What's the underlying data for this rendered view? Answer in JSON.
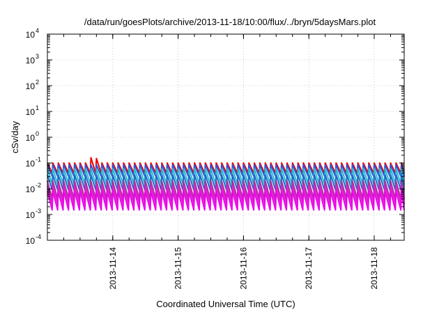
{
  "chart_data": {
    "type": "line",
    "title": "/data/run/goesPlots/archive/2013-11-18/10:00/flux/../bryn/5daysMars.plot",
    "xlabel": "Coordinated Universal Time (UTC)",
    "ylabel": "cSv/day",
    "yscale": "log",
    "ylim": [
      0.0001,
      10000
    ],
    "xlim": [
      "2013-11-13T00:00",
      "2013-11-18T11:00"
    ],
    "grid": true,
    "legend": "none",
    "y_ticks": [
      {
        "base": "10",
        "exp": "-4"
      },
      {
        "base": "10",
        "exp": "-3"
      },
      {
        "base": "10",
        "exp": "-2"
      },
      {
        "base": "10",
        "exp": "-1"
      },
      {
        "base": "10",
        "exp": "0"
      },
      {
        "base": "10",
        "exp": "1"
      },
      {
        "base": "10",
        "exp": "2"
      },
      {
        "base": "10",
        "exp": "3"
      },
      {
        "base": "10",
        "exp": "4"
      }
    ],
    "x_ticks": [
      "2013-11-14",
      "2013-11-15",
      "2013-11-16",
      "2013-11-17",
      "2013-11-18"
    ],
    "cycle_hours": 2,
    "series": [
      {
        "color": "#ee0000",
        "high": 0.1,
        "low": 0.04
      },
      {
        "color": "#3355dd",
        "high": 0.085,
        "low": 0.03
      },
      {
        "color": "#22bbcc",
        "high": 0.06,
        "low": 0.015
      },
      {
        "color": "#2266cc",
        "high": 0.035,
        "low": 0.009
      },
      {
        "color": "#aa3399",
        "high": 0.02,
        "low": 0.004
      },
      {
        "color": "#dd22cc",
        "high": 0.013,
        "low": 0.0025
      },
      {
        "color": "#ee00ee",
        "high": 0.008,
        "low": 0.0015
      }
    ],
    "spikes": [
      {
        "x": "2013-11-13T16:30",
        "y": 0.16
      },
      {
        "x": "2013-11-13T18:30",
        "y": 0.15
      }
    ]
  }
}
